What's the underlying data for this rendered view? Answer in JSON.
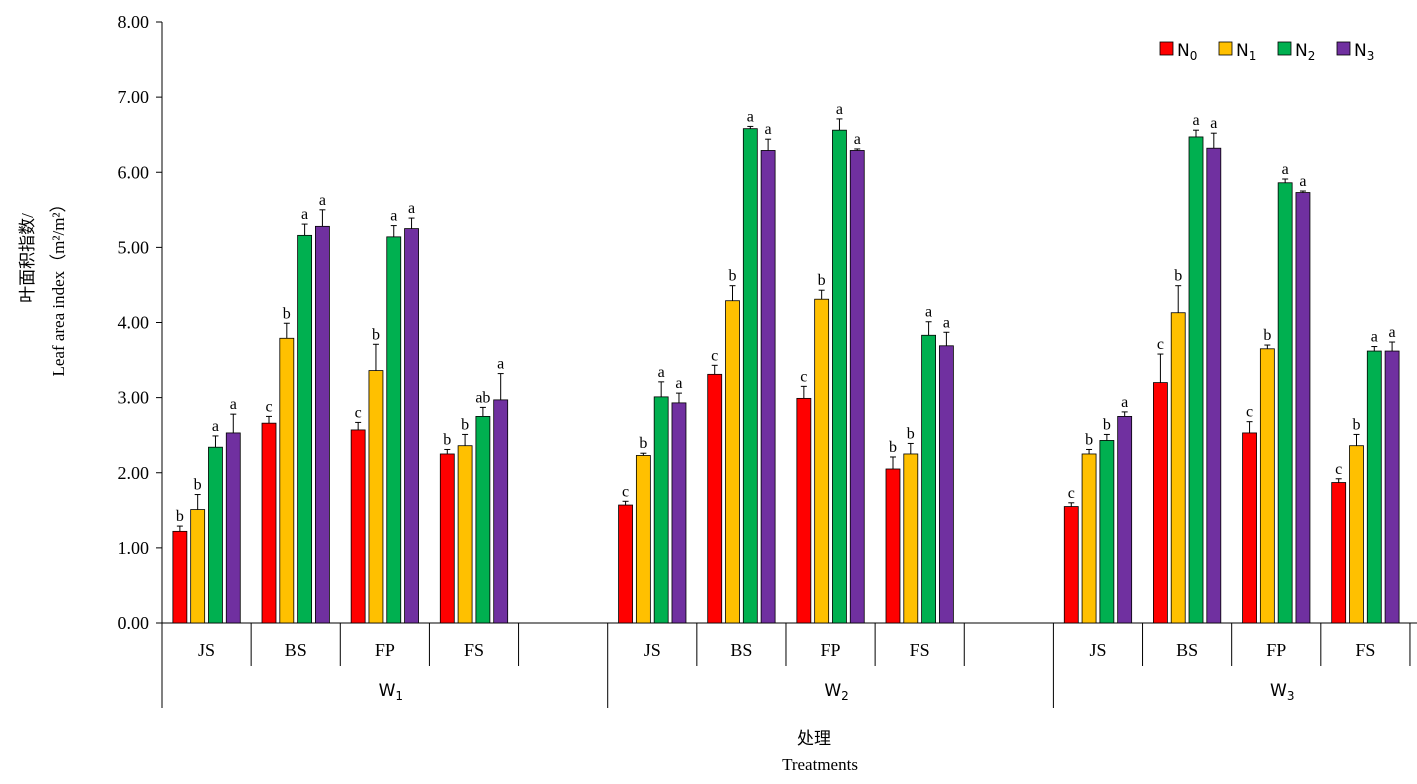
{
  "chart_data": {
    "type": "bar",
    "ylabel_cn": "叶面积指数/",
    "ylabel_en": "Leaf area index（m²/m²）",
    "xlabel_cn": "处理",
    "xlabel_en": "Treatments",
    "ylim": [
      0,
      8
    ],
    "yticks": [
      "0.00",
      "1.00",
      "2.00",
      "3.00",
      "4.00",
      "5.00",
      "6.00",
      "7.00",
      "8.00"
    ],
    "legend_position": "top-right",
    "groups": [
      {
        "label": "W",
        "sub": "1"
      },
      {
        "label": "W",
        "sub": "2"
      },
      {
        "label": "W",
        "sub": "3"
      }
    ],
    "categories": [
      "JS",
      "BS",
      "FP",
      "FS"
    ],
    "series": [
      {
        "name": "N",
        "sub": "0",
        "color": "#FF0000",
        "values": [
          [
            1.22,
            2.66,
            2.57,
            2.25
          ],
          [
            1.57,
            3.31,
            2.99,
            2.05
          ],
          [
            1.55,
            3.2,
            2.53,
            1.87
          ]
        ],
        "errors": [
          [
            0.07,
            0.09,
            0.1,
            0.06
          ],
          [
            0.05,
            0.12,
            0.16,
            0.16
          ],
          [
            0.05,
            0.38,
            0.15,
            0.05
          ]
        ],
        "sig": [
          [
            "b",
            "c",
            "c",
            "b"
          ],
          [
            "c",
            "c",
            "c",
            "b"
          ],
          [
            "c",
            "c",
            "c",
            "c"
          ]
        ]
      },
      {
        "name": "N",
        "sub": "1",
        "color": "#FFC000",
        "values": [
          [
            1.51,
            3.79,
            3.36,
            2.36
          ],
          [
            2.23,
            4.29,
            4.31,
            2.25
          ],
          [
            2.25,
            4.13,
            3.65,
            2.36
          ]
        ],
        "errors": [
          [
            0.2,
            0.2,
            0.35,
            0.15
          ],
          [
            0.03,
            0.2,
            0.12,
            0.14
          ],
          [
            0.06,
            0.36,
            0.05,
            0.15
          ]
        ],
        "sig": [
          [
            "b",
            "b",
            "b",
            "b"
          ],
          [
            "b",
            "b",
            "b",
            "b"
          ],
          [
            "b",
            "b",
            "b",
            "b"
          ]
        ]
      },
      {
        "name": "N",
        "sub": "2",
        "color": "#00B050",
        "values": [
          [
            2.34,
            5.16,
            5.14,
            2.75
          ],
          [
            3.01,
            6.58,
            6.56,
            3.83
          ],
          [
            2.43,
            6.47,
            5.86,
            3.62
          ]
        ],
        "errors": [
          [
            0.15,
            0.15,
            0.15,
            0.12
          ],
          [
            0.2,
            0.03,
            0.15,
            0.18
          ],
          [
            0.08,
            0.09,
            0.05,
            0.06
          ]
        ],
        "sig": [
          [
            "a",
            "a",
            "a",
            "ab"
          ],
          [
            "a",
            "a",
            "a",
            "a"
          ],
          [
            "b",
            "a",
            "a",
            "a"
          ]
        ]
      },
      {
        "name": "N",
        "sub": "3",
        "color": "#7030A0",
        "values": [
          [
            2.53,
            5.28,
            5.25,
            2.97
          ],
          [
            2.93,
            6.29,
            6.29,
            3.69
          ],
          [
            2.75,
            6.32,
            5.73,
            3.62
          ]
        ],
        "errors": [
          [
            0.25,
            0.22,
            0.14,
            0.35
          ],
          [
            0.13,
            0.15,
            0.02,
            0.18
          ],
          [
            0.06,
            0.2,
            0.02,
            0.12
          ]
        ],
        "sig": [
          [
            "a",
            "a",
            "a",
            "a"
          ],
          [
            "a",
            "a",
            "a",
            "a"
          ],
          [
            "a",
            "a",
            "a",
            "a"
          ]
        ]
      }
    ]
  }
}
